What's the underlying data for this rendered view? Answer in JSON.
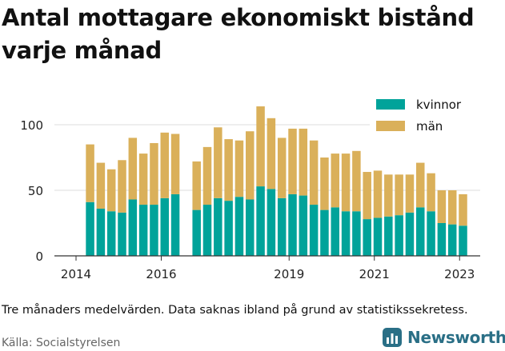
{
  "title": "Antal mottagare ekonomiskt bistånd varje månad",
  "note": "Tre månaders medelvärden. Data saknas ibland på grund av statistikssekretess.",
  "source": "Källa: Socialstyrelsen",
  "brand": {
    "name": "Newsworthy"
  },
  "colors": {
    "kvinnor": "#00a39a",
    "man": "#dab05a",
    "brand": "#2a6f86"
  },
  "chart_data": {
    "type": "bar",
    "stacked": true,
    "ylim": [
      0,
      125
    ],
    "yticks": [
      0,
      50,
      100
    ],
    "xticks": [
      {
        "label": "2014",
        "x": 2014.0
      },
      {
        "label": "2016",
        "x": 2016.0
      },
      {
        "label": "2019",
        "x": 2019.0
      },
      {
        "label": "2021",
        "x": 2021.0
      },
      {
        "label": "2023",
        "x": 2023.0
      }
    ],
    "x": [
      2014.33,
      2014.58,
      2014.83,
      2015.08,
      2015.33,
      2015.58,
      2015.83,
      2016.08,
      2016.33,
      2016.83,
      2017.08,
      2017.33,
      2017.58,
      2017.83,
      2018.08,
      2018.33,
      2018.58,
      2018.83,
      2019.08,
      2019.33,
      2019.58,
      2019.83,
      2020.08,
      2020.33,
      2020.58,
      2020.83,
      2021.08,
      2021.33,
      2021.58,
      2021.83,
      2022.08,
      2022.33,
      2022.58,
      2022.83,
      2023.08
    ],
    "series": [
      {
        "name": "kvinnor",
        "values": [
          41,
          36,
          34,
          33,
          43,
          39,
          39,
          44,
          47,
          35,
          39,
          44,
          42,
          45,
          43,
          53,
          51,
          44,
          47,
          46,
          39,
          35,
          37,
          34,
          34,
          28,
          29,
          30,
          31,
          33,
          37,
          34,
          25,
          24,
          23
        ]
      },
      {
        "name": "män",
        "values": [
          44,
          35,
          32,
          40,
          47,
          39,
          47,
          50,
          46,
          37,
          44,
          54,
          47,
          43,
          52,
          61,
          54,
          46,
          50,
          51,
          49,
          40,
          41,
          44,
          46,
          36,
          36,
          32,
          31,
          29,
          34,
          29,
          25,
          26,
          24
        ]
      }
    ],
    "legend": [
      {
        "label": "kvinnor",
        "color": "#00a39a"
      },
      {
        "label": "män",
        "color": "#dab05a"
      }
    ],
    "legend_position": "top-right",
    "grid": true
  }
}
